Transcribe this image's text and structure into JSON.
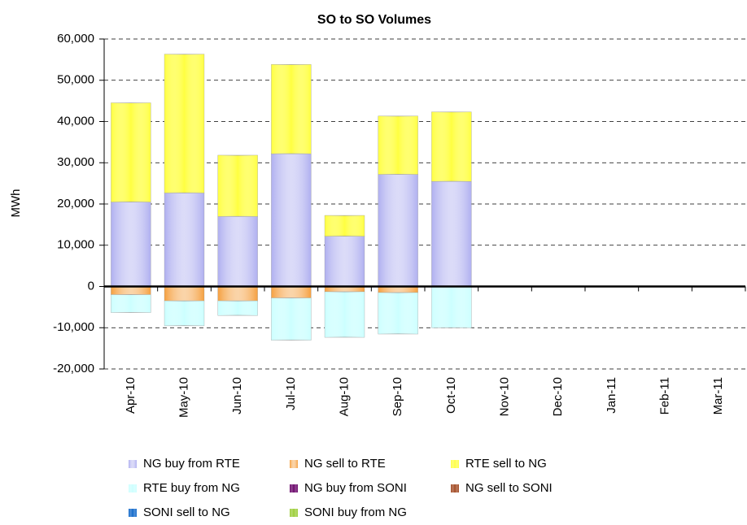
{
  "chart_data": {
    "type": "bar",
    "stacked": true,
    "title": "SO to SO Volumes",
    "y_label": "MWh",
    "categories": [
      "Apr-10",
      "May-10",
      "Jun-10",
      "Jul-10",
      "Aug-10",
      "Sep-10",
      "Oct-10",
      "Nov-10",
      "Dec-10",
      "Jan-11",
      "Feb-11",
      "Mar-11"
    ],
    "series": [
      {
        "name": "NG buy from RTE",
        "color": "#b0b0f0",
        "values": [
          20500,
          22700,
          17000,
          32200,
          12200,
          27200,
          25500,
          null,
          null,
          null,
          null,
          null
        ]
      },
      {
        "name": "NG sell to RTE",
        "color": "#f5a040",
        "values": [
          -2000,
          -3500,
          -3500,
          -2800,
          -1300,
          -1500,
          0,
          null,
          null,
          null,
          null,
          null
        ]
      },
      {
        "name": "RTE sell to NG",
        "color": "#ffff40",
        "values": [
          24000,
          33600,
          14800,
          21600,
          5000,
          14100,
          16800,
          null,
          null,
          null,
          null,
          null
        ]
      },
      {
        "name": "RTE buy from NG",
        "color": "#ccffff",
        "values": [
          -4300,
          -6000,
          -3500,
          -10200,
          -11000,
          -10000,
          -10000,
          null,
          null,
          null,
          null,
          null
        ]
      },
      {
        "name": "NG buy from SONI",
        "color": "#660066",
        "values": [
          0,
          0,
          0,
          0,
          0,
          0,
          0,
          null,
          null,
          null,
          null,
          null
        ]
      },
      {
        "name": "NG sell to SONI",
        "color": "#a0461e",
        "values": [
          0,
          0,
          0,
          0,
          0,
          0,
          0,
          null,
          null,
          null,
          null,
          null
        ]
      },
      {
        "name": "SONI sell to NG",
        "color": "#0a64c8",
        "values": [
          0,
          0,
          0,
          0,
          0,
          0,
          0,
          null,
          null,
          null,
          null,
          null
        ]
      },
      {
        "name": "SONI buy from NG",
        "color": "#99cc33",
        "values": [
          0,
          0,
          0,
          0,
          0,
          0,
          0,
          null,
          null,
          null,
          null,
          null
        ]
      }
    ],
    "ylim": [
      -20000,
      60000
    ],
    "yticks": [
      {
        "value": -20000,
        "label": "-20,000"
      },
      {
        "value": -10000,
        "label": "-10,000"
      },
      0,
      {
        "value": 10000,
        "label": "10,000"
      },
      {
        "value": 20000,
        "label": "20,000"
      },
      {
        "value": 30000,
        "label": "30,000"
      },
      {
        "value": 40000,
        "label": "40,000"
      },
      {
        "value": 50000,
        "label": "50,000"
      },
      {
        "value": 60000,
        "label": "60,000"
      }
    ],
    "grid": true,
    "legend": "bottom"
  }
}
